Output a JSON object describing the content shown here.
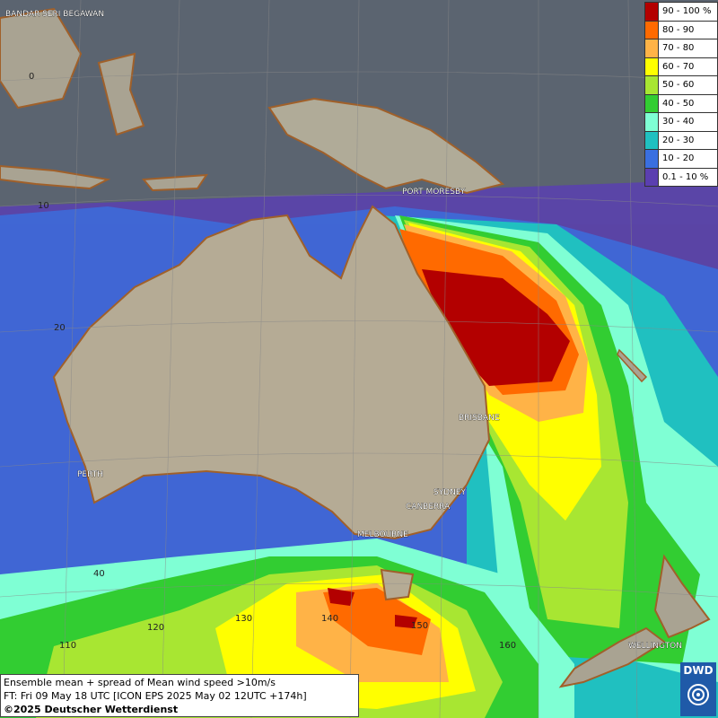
{
  "legend": {
    "items": [
      {
        "label": "90 - 100 %",
        "color": "#b30000"
      },
      {
        "label": "80 - 90",
        "color": "#ff6a00"
      },
      {
        "label": "70 - 80",
        "color": "#ffb347"
      },
      {
        "label": "60 - 70",
        "color": "#ffff00"
      },
      {
        "label": "50 - 60",
        "color": "#a8e632"
      },
      {
        "label": "40 - 50",
        "color": "#32cd32"
      },
      {
        "label": "30 - 40",
        "color": "#7fffd4"
      },
      {
        "label": "20 - 30",
        "color": "#20c0c0"
      },
      {
        "label": "10 - 20",
        "color": "#3a6fe0"
      },
      {
        "label": "0.1 - 10 %",
        "color": "#5b3fb0"
      }
    ]
  },
  "info": {
    "line1": "Ensemble mean + spread of Mean wind speed >10m/s",
    "line2": "FT: Fri 09 May 18 UTC [ICON EPS 2025 May 02 12UTC +174h]",
    "line3": "©2025 Deutscher Wetterdienst"
  },
  "logo": {
    "text": "DWD"
  },
  "cities": {
    "bandar": "BANDAR SERI BEGAWAN",
    "port_moresby": "PORT MORESBY",
    "brisbane": "BRISBANE",
    "perth": "PERTH",
    "sydney": "SYDNEY",
    "canberra": "CANBERRA",
    "melbourne": "MELBOURNE",
    "wellington": "WELLINGTON"
  },
  "grid_labels": {
    "lat0": "0",
    "lat10": "10",
    "lat20": "20",
    "lat40": "40",
    "lon110": "110",
    "lon120": "120",
    "lon130": "130",
    "lon140": "140",
    "lon150": "150",
    "lon160": "160"
  }
}
